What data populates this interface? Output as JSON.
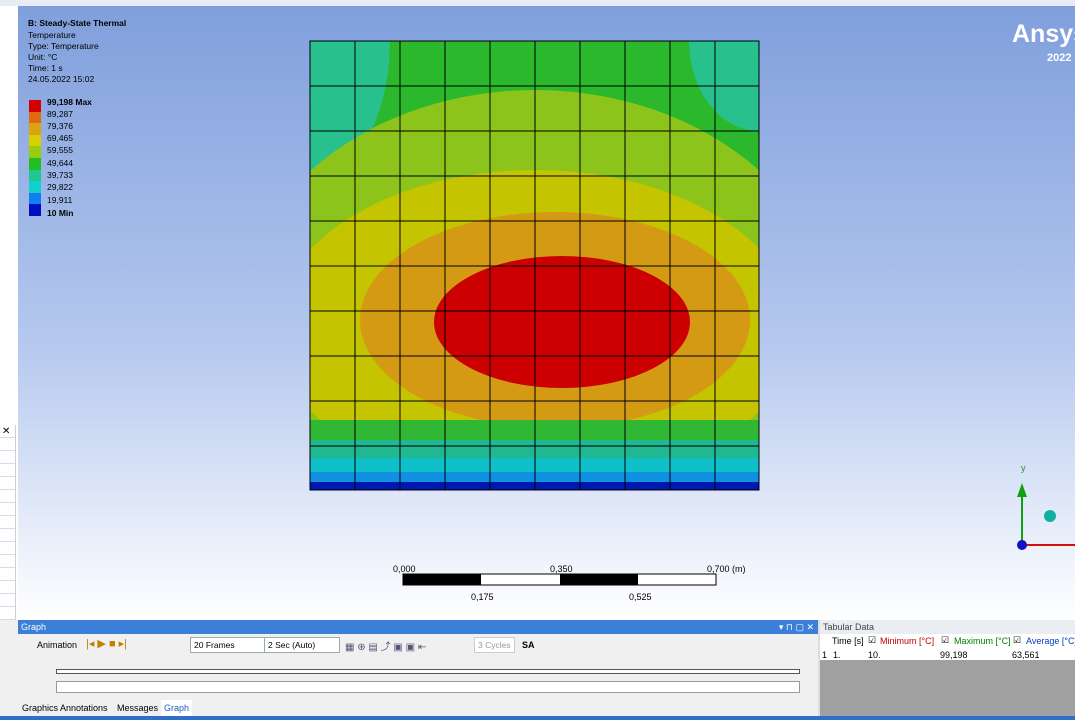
{
  "header": {
    "title": "B: Steady-State Thermal",
    "lines": [
      "Temperature",
      "Type: Temperature",
      "Unit: °C",
      "Time: 1 s",
      "24.05.2022 15:02"
    ]
  },
  "legend": {
    "labels": [
      "99,198 Max",
      "89,287",
      "79,376",
      "69,465",
      "59,555",
      "49,644",
      "39,733",
      "29,822",
      "19,911",
      "10 Min"
    ]
  },
  "logo": {
    "name": "Ansys",
    "year": "2022"
  },
  "scale": {
    "top": [
      "0,000",
      "0,350",
      "0,700 (m)"
    ],
    "bottom": [
      "0,175",
      "0,525"
    ]
  },
  "triad": {
    "axis": "y"
  },
  "graph_panel": {
    "title": "Graph",
    "animation": "Animation",
    "frames": "20 Frames",
    "duration": "2 Sec (Auto)",
    "cycles": "3 Cycles",
    "mode": "SA"
  },
  "tabs": [
    "Graphics Annotations",
    "Messages",
    "Graph"
  ],
  "tabular": {
    "title": "Tabular Data",
    "columns": [
      "Time [s]",
      "Minimum [°C]",
      "Maximum [°C]",
      "Average [°C]"
    ],
    "row_number": "1",
    "rows": [
      [
        "1.",
        "10.",
        "99,198",
        "63,561"
      ]
    ]
  }
}
